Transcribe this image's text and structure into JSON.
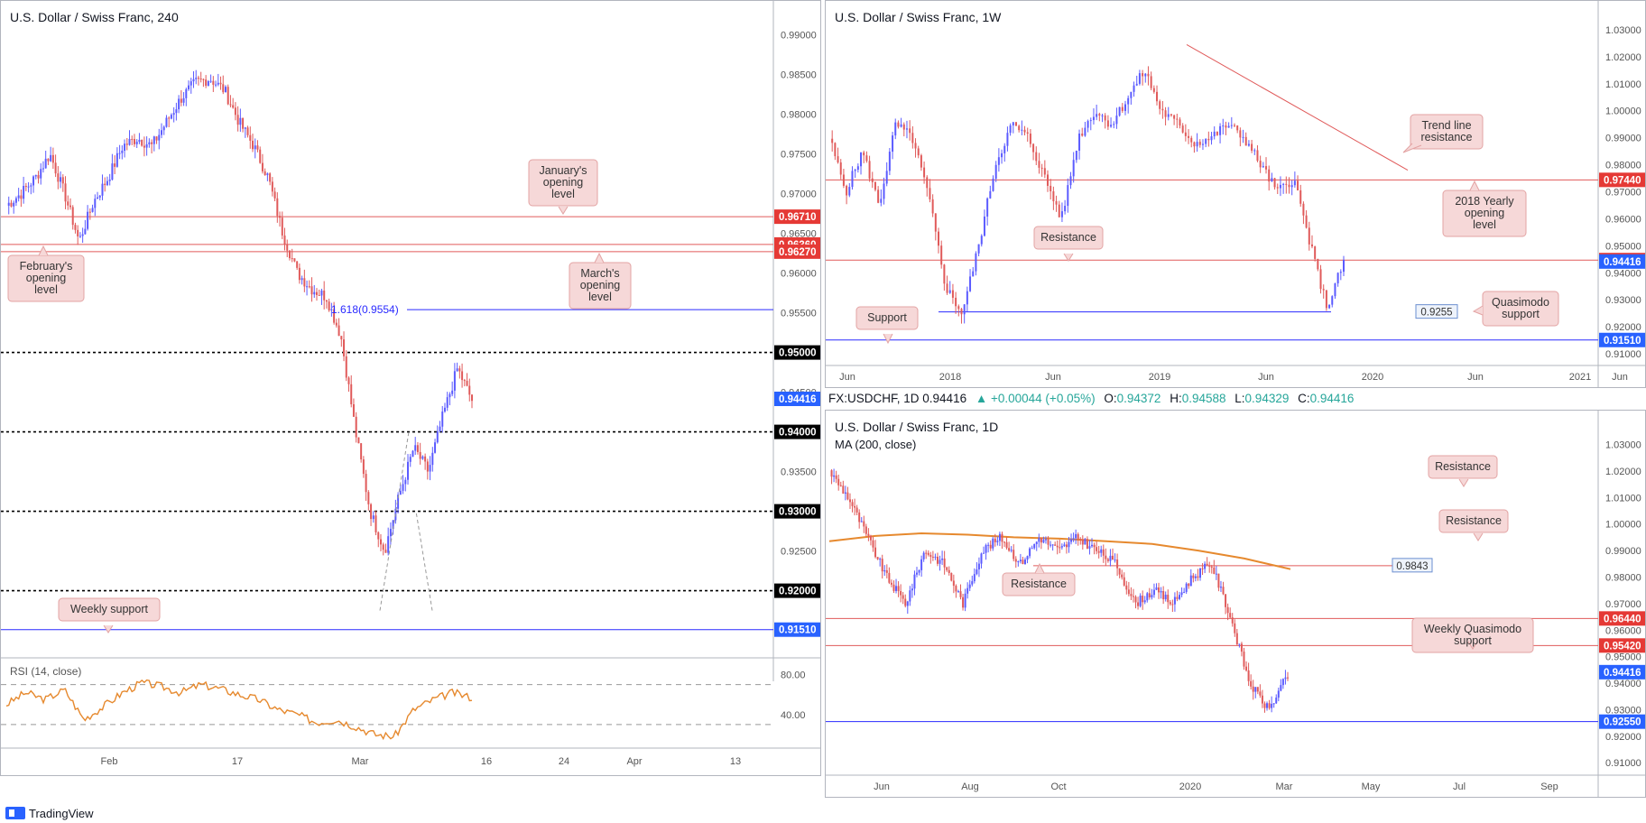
{
  "colors": {
    "up": "#5b5bff",
    "down": "#e05a5a",
    "hline": "#e05a5a",
    "support": "#2a2aff",
    "rsi": "#e6892e",
    "ma": "#e6892e",
    "callout_bg": "#f6d8d8",
    "callout_border": "#e3a3a3",
    "label_red": "#e53935",
    "label_blue": "#2962ff",
    "label_black": "#000000"
  },
  "footer": {
    "brand": "TradingView",
    "icon": "tradingview-logo-icon"
  },
  "panels": [
    {
      "id": "p1",
      "title": "U.S. Dollar / Swiss Franc, 240",
      "indicator": "RSI (14, close)",
      "chart_data": {
        "type": "candlestick",
        "symbol": "U.S. Dollar / Swiss Franc",
        "interval": "240",
        "x_ticks": [
          "Feb",
          "17",
          "Mar",
          "16",
          "24",
          "Apr",
          "13"
        ],
        "y_ticks": [
          "0.99000",
          "0.98500",
          "0.98000",
          "0.97500",
          "0.97000",
          "0.96500",
          "0.96000",
          "0.95500",
          "0.95000",
          "0.94500",
          "0.94000",
          "0.93500",
          "0.93000",
          "0.92500",
          "0.92000"
        ],
        "ylim": [
          0.912,
          0.992
        ],
        "price_labels": [
          {
            "text": "0.96710",
            "value": 0.9671,
            "style": "red"
          },
          {
            "text": "0.96360",
            "value": 0.9636,
            "style": "red"
          },
          {
            "text": "0.96270",
            "value": 0.9627,
            "style": "red"
          },
          {
            "text": "0.95000",
            "value": 0.95,
            "style": "black"
          },
          {
            "text": "0.94416",
            "value": 0.94416,
            "style": "blue"
          },
          {
            "text": "0.94000",
            "value": 0.94,
            "style": "black"
          },
          {
            "text": "0.93000",
            "value": 0.93,
            "style": "black"
          },
          {
            "text": "0.92000",
            "value": 0.92,
            "style": "black"
          },
          {
            "text": "0.91510",
            "value": 0.9151,
            "style": "blue"
          }
        ],
        "annotations": [
          {
            "text": "January's opening level",
            "lines": [
              "January's",
              "opening",
              "level"
            ]
          },
          {
            "text": "February's opening level",
            "lines": [
              "February's",
              "opening",
              "level"
            ]
          },
          {
            "text": "March's opening level",
            "lines": [
              "March's",
              "opening",
              "level"
            ]
          },
          {
            "text": "Weekly support",
            "lines": [
              "Weekly support"
            ]
          },
          {
            "text": "1.618(0.9554)",
            "lines": [
              "1.618(0.9554)"
            ]
          }
        ],
        "rsi": {
          "name": "RSI (14, close)",
          "ticks": [
            "80.00",
            "40.00"
          ],
          "ylim": [
            10,
            95
          ],
          "bands": [
            70,
            30
          ],
          "last": 57
        }
      }
    },
    {
      "id": "p2",
      "title": "U.S. Dollar / Swiss Franc, 1W",
      "chart_data": {
        "type": "candlestick",
        "symbol": "U.S. Dollar / Swiss Franc",
        "interval": "1W",
        "x_ticks": [
          "Jun",
          "2018",
          "Jun",
          "2019",
          "Jun",
          "2020",
          "Jun",
          "2021",
          "Jun"
        ],
        "y_ticks": [
          "1.03000",
          "1.02000",
          "1.01000",
          "1.00000",
          "0.99000",
          "0.98000",
          "0.97000",
          "0.96000",
          "0.95000",
          "0.94000",
          "0.93000",
          "0.92000",
          "0.91000"
        ],
        "ylim": [
          0.907,
          1.034
        ],
        "price_labels": [
          {
            "text": "0.97440",
            "value": 0.9744,
            "style": "red"
          },
          {
            "text": "0.94470",
            "value": 0.9447,
            "style": "red"
          },
          {
            "text": "0.94416",
            "value": 0.94416,
            "style": "blue"
          },
          {
            "text": "0.91510",
            "value": 0.9151,
            "style": "blue"
          }
        ],
        "annotations": [
          {
            "text": "Trend line resistance",
            "lines": [
              "Trend line",
              "resistance"
            ]
          },
          {
            "text": "2018 Yearly opening level",
            "lines": [
              "2018 Yearly",
              "opening",
              "level"
            ]
          },
          {
            "text": "Resistance",
            "lines": [
              "Resistance"
            ]
          },
          {
            "text": "Quasimodo support",
            "lines": [
              "Quasimodo",
              "support"
            ]
          },
          {
            "text": "Support",
            "lines": [
              "Support"
            ]
          },
          {
            "text": "0.9255",
            "lines": [
              "0.9255"
            ]
          }
        ]
      }
    },
    {
      "id": "p3",
      "title": "U.S. Dollar / Swiss Franc, 1D",
      "indicator": "MA (200, close)",
      "chart_data": {
        "type": "candlestick",
        "symbol": "U.S. Dollar / Swiss Franc",
        "interval": "1D",
        "x_ticks": [
          "Jun",
          "Aug",
          "Oct",
          "2020",
          "Mar",
          "May",
          "Jul",
          "Sep"
        ],
        "y_ticks": [
          "1.03000",
          "1.02000",
          "1.01000",
          "1.00000",
          "0.99000",
          "0.98000",
          "0.97000",
          "0.96000",
          "0.95000",
          "0.94000",
          "0.93000",
          "0.92000",
          "0.91000"
        ],
        "ylim": [
          0.906,
          1.038
        ],
        "price_labels": [
          {
            "text": "0.96440",
            "value": 0.9644,
            "style": "red"
          },
          {
            "text": "0.95420",
            "value": 0.9542,
            "style": "red"
          },
          {
            "text": "0.94416",
            "value": 0.94416,
            "style": "blue"
          },
          {
            "text": "0.92550",
            "value": 0.9255,
            "style": "blue"
          }
        ],
        "annotations": [
          {
            "text": "Resistance",
            "lines": [
              "Resistance"
            ]
          },
          {
            "text": "0.9843",
            "lines": [
              "0.9843"
            ]
          },
          {
            "text": "Resistance",
            "lines": [
              "Resistance"
            ]
          },
          {
            "text": "Resistance",
            "lines": [
              "Resistance"
            ]
          },
          {
            "text": "Weekly Quasimodo support",
            "lines": [
              "Weekly Quasimodo",
              "support"
            ]
          }
        ]
      }
    }
  ],
  "infobar": {
    "symbol": "FX:USDCHF, 1D",
    "last": "0.94416",
    "change": "+0.00044 (+0.05%)",
    "o_label": "O:",
    "o": "0.94372",
    "h_label": "H:",
    "h": "0.94588",
    "l_label": "L:",
    "l": "0.94329",
    "c_label": "C:",
    "c": "0.94416"
  }
}
